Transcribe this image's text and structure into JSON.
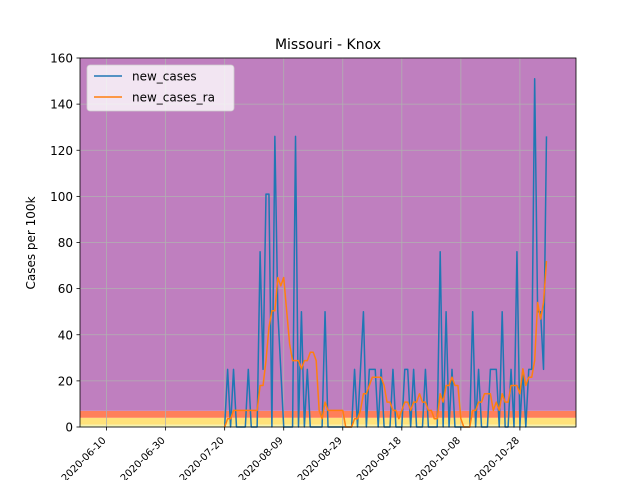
{
  "chart_data": {
    "type": "line",
    "title": "Missouri - Knox",
    "xlabel": "",
    "ylabel": "Cases per 100k",
    "ylim": [
      0,
      160
    ],
    "yticks": [
      0,
      20,
      40,
      60,
      80,
      100,
      120,
      140,
      160
    ],
    "xlim": [
      "2020-06-01",
      "2020-11-16"
    ],
    "xticks": [
      "2020-06-10",
      "2020-06-30",
      "2020-07-20",
      "2020-08-09",
      "2020-08-29",
      "2020-09-18",
      "2020-10-08",
      "2020-10-28"
    ],
    "grid": true,
    "legend_position": "upper-left",
    "risk_bands": [
      {
        "from": 0,
        "to": 1,
        "color": "#f5f5b0"
      },
      {
        "from": 1,
        "to": 4,
        "color": "#ffe27a"
      },
      {
        "from": 4,
        "to": 7,
        "color": "#ff7f5a"
      },
      {
        "from": 7,
        "to": 160,
        "color": "#bf7fbf"
      }
    ],
    "series": [
      {
        "name": "new_cases",
        "color": "#1f77b4",
        "points": [
          [
            "2020-07-20",
            0
          ],
          [
            "2020-07-21",
            25
          ],
          [
            "2020-07-22",
            0
          ],
          [
            "2020-07-23",
            25
          ],
          [
            "2020-07-24",
            0
          ],
          [
            "2020-07-27",
            0
          ],
          [
            "2020-07-28",
            25
          ],
          [
            "2020-07-29",
            0
          ],
          [
            "2020-07-31",
            0
          ],
          [
            "2020-08-01",
            76
          ],
          [
            "2020-08-02",
            25
          ],
          [
            "2020-08-03",
            101
          ],
          [
            "2020-08-04",
            101
          ],
          [
            "2020-08-05",
            0
          ],
          [
            "2020-08-06",
            126
          ],
          [
            "2020-08-07",
            50
          ],
          [
            "2020-08-08",
            25
          ],
          [
            "2020-08-09",
            0
          ],
          [
            "2020-08-12",
            0
          ],
          [
            "2020-08-13",
            126
          ],
          [
            "2020-08-14",
            0
          ],
          [
            "2020-08-15",
            50
          ],
          [
            "2020-08-16",
            0
          ],
          [
            "2020-08-17",
            25
          ],
          [
            "2020-08-18",
            0
          ],
          [
            "2020-08-22",
            0
          ],
          [
            "2020-08-23",
            50
          ],
          [
            "2020-08-24",
            0
          ],
          [
            "2020-09-01",
            0
          ],
          [
            "2020-09-02",
            25
          ],
          [
            "2020-09-03",
            0
          ],
          [
            "2020-09-04",
            25
          ],
          [
            "2020-09-05",
            50
          ],
          [
            "2020-09-06",
            0
          ],
          [
            "2020-09-07",
            25
          ],
          [
            "2020-09-09",
            25
          ],
          [
            "2020-09-10",
            0
          ],
          [
            "2020-09-11",
            25
          ],
          [
            "2020-09-12",
            0
          ],
          [
            "2020-09-14",
            0
          ],
          [
            "2020-09-15",
            25
          ],
          [
            "2020-09-16",
            0
          ],
          [
            "2020-09-18",
            0
          ],
          [
            "2020-09-19",
            25
          ],
          [
            "2020-09-20",
            25
          ],
          [
            "2020-09-21",
            0
          ],
          [
            "2020-09-22",
            25
          ],
          [
            "2020-09-23",
            0
          ],
          [
            "2020-09-25",
            0
          ],
          [
            "2020-09-26",
            25
          ],
          [
            "2020-09-27",
            0
          ],
          [
            "2020-09-30",
            0
          ],
          [
            "2020-10-01",
            76
          ],
          [
            "2020-10-02",
            0
          ],
          [
            "2020-10-03",
            50
          ],
          [
            "2020-10-04",
            0
          ],
          [
            "2020-10-05",
            25
          ],
          [
            "2020-10-06",
            0
          ],
          [
            "2020-10-11",
            0
          ],
          [
            "2020-10-12",
            50
          ],
          [
            "2020-10-13",
            0
          ],
          [
            "2020-10-14",
            25
          ],
          [
            "2020-10-15",
            0
          ],
          [
            "2020-10-17",
            0
          ],
          [
            "2020-10-18",
            25
          ],
          [
            "2020-10-20",
            25
          ],
          [
            "2020-10-21",
            0
          ],
          [
            "2020-10-22",
            50
          ],
          [
            "2020-10-23",
            0
          ],
          [
            "2020-10-24",
            0
          ],
          [
            "2020-10-25",
            25
          ],
          [
            "2020-10-26",
            0
          ],
          [
            "2020-10-27",
            76
          ],
          [
            "2020-10-28",
            0
          ],
          [
            "2020-10-29",
            25
          ],
          [
            "2020-10-30",
            0
          ],
          [
            "2020-10-31",
            25
          ],
          [
            "2020-11-01",
            25
          ],
          [
            "2020-11-02",
            151
          ],
          [
            "2020-11-03",
            50
          ],
          [
            "2020-11-04",
            50
          ],
          [
            "2020-11-05",
            25
          ],
          [
            "2020-11-06",
            126
          ]
        ]
      },
      {
        "name": "new_cases_ra",
        "color": "#ff7f0e",
        "points": [
          [
            "2020-07-20",
            0
          ],
          [
            "2020-07-21",
            3.6
          ],
          [
            "2020-07-22",
            3.6
          ],
          [
            "2020-07-23",
            7.2
          ],
          [
            "2020-07-24",
            7.2
          ],
          [
            "2020-07-25",
            7.2
          ],
          [
            "2020-07-26",
            7.2
          ],
          [
            "2020-07-27",
            7.2
          ],
          [
            "2020-07-28",
            7.2
          ],
          [
            "2020-07-29",
            7.2
          ],
          [
            "2020-07-30",
            7.2
          ],
          [
            "2020-07-31",
            7.2
          ],
          [
            "2020-08-01",
            18
          ],
          [
            "2020-08-02",
            18
          ],
          [
            "2020-08-03",
            28.8
          ],
          [
            "2020-08-04",
            43.2
          ],
          [
            "2020-08-05",
            50.4
          ],
          [
            "2020-08-06",
            50.4
          ],
          [
            "2020-08-07",
            64.8
          ],
          [
            "2020-08-08",
            61.2
          ],
          [
            "2020-08-09",
            64.8
          ],
          [
            "2020-08-10",
            50.4
          ],
          [
            "2020-08-11",
            36
          ],
          [
            "2020-08-12",
            28.8
          ],
          [
            "2020-08-13",
            28.8
          ],
          [
            "2020-08-14",
            28.8
          ],
          [
            "2020-08-15",
            25.2
          ],
          [
            "2020-08-16",
            28.8
          ],
          [
            "2020-08-17",
            28.8
          ],
          [
            "2020-08-18",
            32.4
          ],
          [
            "2020-08-19",
            32.4
          ],
          [
            "2020-08-20",
            28.8
          ],
          [
            "2020-08-21",
            7.2
          ],
          [
            "2020-08-22",
            3.6
          ],
          [
            "2020-08-23",
            10.8
          ],
          [
            "2020-08-24",
            7.2
          ],
          [
            "2020-08-25",
            7.2
          ],
          [
            "2020-08-26",
            7.2
          ],
          [
            "2020-08-27",
            7.2
          ],
          [
            "2020-08-28",
            7.2
          ],
          [
            "2020-08-29",
            7.2
          ],
          [
            "2020-08-30",
            0
          ],
          [
            "2020-08-31",
            0
          ],
          [
            "2020-09-01",
            0
          ],
          [
            "2020-09-02",
            3.6
          ],
          [
            "2020-09-03",
            3.6
          ],
          [
            "2020-09-04",
            7.2
          ],
          [
            "2020-09-05",
            14.4
          ],
          [
            "2020-09-06",
            14.4
          ],
          [
            "2020-09-07",
            18
          ],
          [
            "2020-09-08",
            21.6
          ],
          [
            "2020-09-09",
            21.6
          ],
          [
            "2020-09-10",
            21.6
          ],
          [
            "2020-09-11",
            21.6
          ],
          [
            "2020-09-12",
            18
          ],
          [
            "2020-09-13",
            10.8
          ],
          [
            "2020-09-14",
            10.8
          ],
          [
            "2020-09-15",
            7.2
          ],
          [
            "2020-09-16",
            7.2
          ],
          [
            "2020-09-17",
            3.6
          ],
          [
            "2020-09-18",
            7.2
          ],
          [
            "2020-09-19",
            10.8
          ],
          [
            "2020-09-20",
            10.8
          ],
          [
            "2020-09-21",
            7.2
          ],
          [
            "2020-09-22",
            10.8
          ],
          [
            "2020-09-23",
            10.8
          ],
          [
            "2020-09-24",
            14.4
          ],
          [
            "2020-09-25",
            10.8
          ],
          [
            "2020-09-26",
            10.8
          ],
          [
            "2020-09-27",
            7.2
          ],
          [
            "2020-09-28",
            7.2
          ],
          [
            "2020-09-29",
            3.6
          ],
          [
            "2020-09-30",
            3.6
          ],
          [
            "2020-10-01",
            14.4
          ],
          [
            "2020-10-02",
            10.8
          ],
          [
            "2020-10-03",
            18
          ],
          [
            "2020-10-04",
            18
          ],
          [
            "2020-10-05",
            21.6
          ],
          [
            "2020-10-06",
            18
          ],
          [
            "2020-10-07",
            18
          ],
          [
            "2020-10-08",
            3.6
          ],
          [
            "2020-10-09",
            0
          ],
          [
            "2020-10-10",
            0
          ],
          [
            "2020-10-11",
            0
          ],
          [
            "2020-10-12",
            7.2
          ],
          [
            "2020-10-13",
            7.2
          ],
          [
            "2020-10-14",
            10.8
          ],
          [
            "2020-10-15",
            10.8
          ],
          [
            "2020-10-16",
            14.4
          ],
          [
            "2020-10-17",
            14.4
          ],
          [
            "2020-10-18",
            14.4
          ],
          [
            "2020-10-19",
            7.2
          ],
          [
            "2020-10-20",
            10.8
          ],
          [
            "2020-10-21",
            7.2
          ],
          [
            "2020-10-22",
            14.4
          ],
          [
            "2020-10-23",
            10.8
          ],
          [
            "2020-10-24",
            10.8
          ],
          [
            "2020-10-25",
            18
          ],
          [
            "2020-10-26",
            18
          ],
          [
            "2020-10-27",
            18
          ],
          [
            "2020-10-28",
            14.4
          ],
          [
            "2020-10-29",
            25.2
          ],
          [
            "2020-10-30",
            18
          ],
          [
            "2020-10-31",
            21.6
          ],
          [
            "2020-11-01",
            21.6
          ],
          [
            "2020-11-02",
            28.8
          ],
          [
            "2020-11-03",
            54
          ],
          [
            "2020-11-04",
            46.8
          ],
          [
            "2020-11-05",
            54
          ],
          [
            "2020-11-06",
            72
          ]
        ]
      }
    ]
  }
}
